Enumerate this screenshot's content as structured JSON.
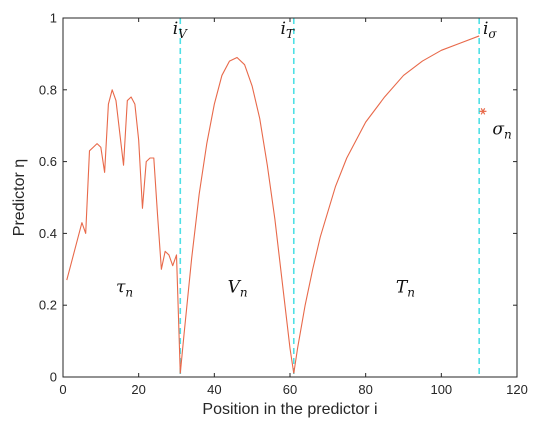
{
  "chart_data": {
    "type": "line",
    "xlabel": "Position in the predictor i",
    "ylabel": "Predictor η",
    "xlim": [
      0,
      120
    ],
    "ylim": [
      0,
      1
    ],
    "x_ticks": [
      0,
      20,
      40,
      60,
      80,
      100,
      120
    ],
    "y_ticks": [
      0,
      0.2,
      0.4,
      0.6,
      0.8,
      1
    ],
    "x_tick_labels": [
      "0",
      "20",
      "40",
      "60",
      "80",
      "100",
      "120"
    ],
    "y_tick_labels": [
      "0",
      "0.2",
      "0.4",
      "0.6",
      "0.8",
      "1"
    ],
    "grid": false,
    "colors": {
      "line": "#e8694a",
      "vline": "#4fe0e6",
      "marker": "#e8694a",
      "axis": "#262626"
    },
    "series": [
      {
        "x": [
          1,
          2,
          3,
          4,
          5,
          6,
          7,
          8,
          9,
          10,
          11,
          12,
          13,
          14,
          15,
          16,
          17,
          18,
          19,
          20,
          21,
          22,
          23,
          24,
          25,
          26,
          27,
          28,
          29,
          30,
          31
        ],
        "y": [
          0.27,
          0.31,
          0.35,
          0.39,
          0.43,
          0.4,
          0.63,
          0.64,
          0.65,
          0.64,
          0.57,
          0.76,
          0.8,
          0.77,
          0.68,
          0.59,
          0.77,
          0.78,
          0.76,
          0.66,
          0.47,
          0.6,
          0.61,
          0.61,
          0.45,
          0.3,
          0.35,
          0.34,
          0.31,
          0.34,
          0.01
        ]
      },
      {
        "x": [
          31,
          32,
          34,
          36,
          38,
          40,
          42,
          44,
          46,
          48,
          50,
          52,
          54,
          56,
          58,
          60,
          61
        ],
        "y": [
          0.01,
          0.12,
          0.33,
          0.51,
          0.65,
          0.76,
          0.84,
          0.88,
          0.89,
          0.87,
          0.81,
          0.72,
          0.59,
          0.44,
          0.26,
          0.08,
          0.01
        ]
      },
      {
        "x": [
          61,
          62,
          64,
          66,
          68,
          70,
          72,
          75,
          78,
          80,
          85,
          90,
          95,
          100,
          105,
          110
        ],
        "y": [
          0.01,
          0.08,
          0.2,
          0.3,
          0.39,
          0.46,
          0.53,
          0.61,
          0.67,
          0.71,
          0.78,
          0.84,
          0.88,
          0.91,
          0.93,
          0.95
        ]
      }
    ],
    "marker_point": {
      "x": 111,
      "y": 0.74
    },
    "vlines": [
      31,
      61,
      110
    ],
    "annotations": [
      {
        "base": "i",
        "sub": "V",
        "x": 29,
        "y": 0.955
      },
      {
        "base": "i",
        "sub": "T",
        "x": 57.5,
        "y": 0.955
      },
      {
        "base": "i",
        "sub": "σ",
        "x": 111,
        "y": 0.955
      },
      {
        "base": "σ",
        "sub": "n",
        "x": 113.5,
        "y": 0.675
      },
      {
        "base": "τ",
        "sub": "n",
        "x": 14,
        "y": 0.235
      },
      {
        "base": "V",
        "sub": "n",
        "x": 43.5,
        "y": 0.235
      },
      {
        "base": "T",
        "sub": "n",
        "x": 88,
        "y": 0.235
      }
    ]
  }
}
